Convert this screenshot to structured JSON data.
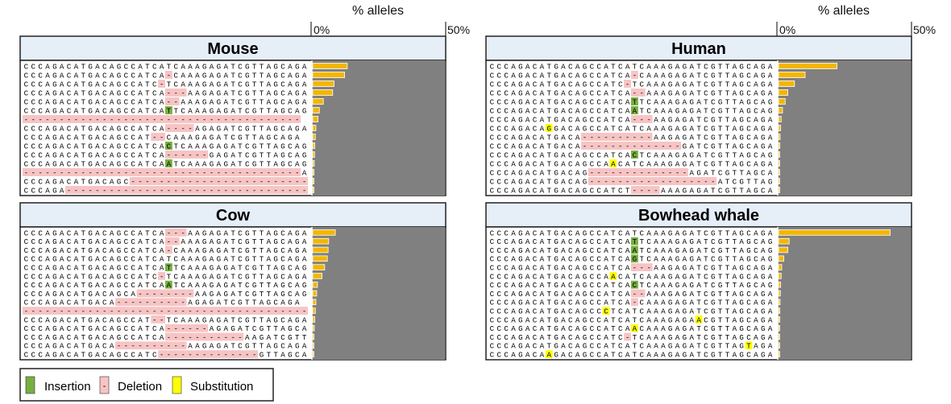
{
  "figure": {
    "axis_title": "% alleles",
    "tick_min": "0%",
    "tick_max": "50%"
  },
  "legend": {
    "insertion": "Insertion",
    "deletion": "Deletion",
    "substitution": "Substitution",
    "colors": {
      "insertion": "#77b041",
      "deletion": "#f7c4c4",
      "substitution": "#ffff00",
      "bar": "#f3b700",
      "plot_bg": "#808080",
      "header_bg": "#e6eef8"
    }
  },
  "chart_data": [
    {
      "type": "bar",
      "title": "Mouse",
      "x_range": [
        0,
        50
      ],
      "alleles": [
        {
          "seq": "CCCAGACATGACAGCCATCATCAAAGAGATCGTTAGCAGA",
          "value": 13
        },
        {
          "seq": "CCCAGACATGACAGCCATCA-CAAAGAGATCGTTAGCAGA",
          "value": 12
        },
        {
          "seq": "CCCAGACATGACAGCCATC-TCAAAGAGATCGTTAGCAGA",
          "value": 8
        },
        {
          "seq": "CCCAGACATGACAGCCATCA---AAGAGATCGTTAGCAGA",
          "value": 7.5
        },
        {
          "seq": "CCCAGACATGACAGCCATCA--AAAGAGATCGTTAGCAGA",
          "value": 4
        },
        {
          "seq": "CCCAGACATGACAGCCATCATTCAAAGAGATCGTTAGCAG",
          "value": 2.5,
          "ins": [
            20
          ]
        },
        {
          "seq": "---------------------------------------",
          "value": 2
        },
        {
          "seq": "CCCAGACATGACAGCCATCA----AGAGATCGTTAGCAGA",
          "value": 1.2
        },
        {
          "seq": "CCCAGACATGACAGCCAT--CAAAGAGATCGTTAGCAGA",
          "value": 1
        },
        {
          "seq": "CCCAGACATGACAGCCATCACTCAAAGAGATCGTTAGCAG",
          "value": 0.8,
          "ins": [
            20
          ]
        },
        {
          "seq": "CCCAGACATGACAGCCATCA------GAGATCGTTAGCAGA",
          "value": 0.7
        },
        {
          "seq": "CCCAGACATGACAGCCATCAATCAAAGAGATCGTTAGCAG",
          "value": 0.6,
          "ins": [
            20
          ]
        },
        {
          "seq": "---------------------------------------A",
          "value": 0.5
        },
        {
          "seq": "CCCAGACATGACAGC--------------------------AGA",
          "value": 0.4
        },
        {
          "seq": "CCCAGA----------------------------------",
          "value": 0.3
        }
      ]
    },
    {
      "type": "bar",
      "title": "Human",
      "x_range": [
        0,
        50
      ],
      "alleles": [
        {
          "seq": "CCCAGACATGACAGCCATCATCAAAGAGATCGTTAGCAGA",
          "value": 22
        },
        {
          "seq": "CCCAGACATGACAGCCATCA-CAAAGAGATCGTTAGCAGA",
          "value": 10
        },
        {
          "seq": "CCCAGACATGACAGCCATC-TCAAAGAGATCGTTAGCAGA",
          "value": 6
        },
        {
          "seq": "CCCAGACATGACAGCCATCA--AAAGAGATCGTTAGCAGA",
          "value": 3.5
        },
        {
          "seq": "CCCAGACATGACAGCCATCATTCAAAGAGATCGTTAGCAG",
          "value": 2.5,
          "ins": [
            20
          ]
        },
        {
          "seq": "CCCAGACATGACAGCCATCAATCAAAGAGATCGTTAGCAG",
          "value": 1.5,
          "ins": [
            20
          ]
        },
        {
          "seq": "CCCAGACATGACAGCCATCA---AAGAGATCGTTAGCAGA",
          "value": 1
        },
        {
          "seq": "CCCAGACAGGACAGCCATCATCAAAGAGATCGTTAGCAGA",
          "value": 0.8,
          "sub": [
            8
          ]
        },
        {
          "seq": "CCCAGACATGACA----------AAGAGATCGTTAGCAGA",
          "value": 0.6
        },
        {
          "seq": "CCCAGACATGACA--------------GATCGTTAGCAGA",
          "value": 0.5
        },
        {
          "seq": "CCCAGACATGACAGCCATCACTCAAAGAGATCGTTAGCAG",
          "value": 0.4,
          "ins": [
            20
          ]
        },
        {
          "seq": "CCCAGACATGACAGCCAACATCAAAGAGATCGTTAGCAGA",
          "value": 0.3,
          "sub": [
            17
          ]
        },
        {
          "seq": "CCCAGACATGACAG--------------AGATCGTTAGCAGA",
          "value": 0.3
        },
        {
          "seq": "CCCAGACATGACAG------------------ATCGTTAGCAGA",
          "value": 0.2
        },
        {
          "seq": "CCCAGACATGACAGCCATCT----AAAGAGATCGTTAGCAGA",
          "value": 0.2
        }
      ]
    },
    {
      "type": "bar",
      "title": "Cow",
      "x_range": [
        0,
        50
      ],
      "alleles": [
        {
          "seq": "CCCAGACATGACAGCCATCA---AAGAGATCGTTAGCAGA",
          "value": 8.5
        },
        {
          "seq": "CCCAGACATGACAGCCATCA--AAAGAGATCGTTAGCAGA",
          "value": 6
        },
        {
          "seq": "CCCAGACATGACAGCCATCA-CAAAGAGATCGTTAGCAGA",
          "value": 5.8
        },
        {
          "seq": "CCCAGACATGACAGCCATCATCAAAGAGATCGTTAGCAGA",
          "value": 5.5
        },
        {
          "seq": "CCCAGACATGACAGCCATCATTCAAAGAGATCGTTAGCAG",
          "value": 4.5,
          "ins": [
            20
          ]
        },
        {
          "seq": "CCCAGACATGACAGCCATC-TCAAAGAGATCGTTAGCAGA",
          "value": 3.5
        },
        {
          "seq": "CCCAGACATGACAGCCATCAATCAAAGAGATCGTTAGCAG",
          "value": 1.8,
          "ins": [
            20
          ]
        },
        {
          "seq": "CCCAGACATGACAGCA--------AAGAGATCGTTAGCAGA",
          "value": 1.5
        },
        {
          "seq": "CCCAGACATGACA----------AGAGATCGTTAGCAGA",
          "value": 1.2
        },
        {
          "seq": "----------------------------------------",
          "value": 1
        },
        {
          "seq": "CCCAGACATGACAGCCAT--TCAAAGAGATCGTTAGCAGA",
          "value": 0.8
        },
        {
          "seq": "CCCAGACATGACAGCCATCA------AGAGATCGTTAGCAGA",
          "value": 0.6
        },
        {
          "seq": "CCCAGACATGACAGCCATCA-----------AAGATCGTTAGCAGA",
          "value": 0.5
        },
        {
          "seq": "CCCAGACATGACA----------AAGAGATCGTTAGCAGA",
          "value": 0.4
        },
        {
          "seq": "CCCAGACATGACAGCCATC--------------GTTAGCAGA",
          "value": 0.3
        }
      ]
    },
    {
      "type": "bar",
      "title": "Bowhead whale",
      "x_range": [
        0,
        50
      ],
      "alleles": [
        {
          "seq": "CCCAGACATGACAGCCATCATCAAAGAGATCGTTAGCAGA",
          "value": 42
        },
        {
          "seq": "CCCAGACATGACAGCCATCATTCAAAGAGATCGTTAGCAG",
          "value": 4,
          "ins": [
            20
          ]
        },
        {
          "seq": "CCCAGACATGACAGCCATCAATCAAAGAGATCGTTAGCAG",
          "value": 3.5,
          "ins": [
            20
          ]
        },
        {
          "seq": "CCCAGACATGACAGCCATCAGTCAAAGAGATCGTTAGCAG",
          "value": 2,
          "ins": [
            20
          ]
        },
        {
          "seq": "CCCAGACATGACAGCCATCA---AAGAGATCGTTAGCAGA",
          "value": 1.2
        },
        {
          "seq": "CCCAGACATGACAGCCAACATCAAAGAGATCGTTAGCAGA",
          "value": 1,
          "sub": [
            17
          ]
        },
        {
          "seq": "CCCAGACATGACAGCCATCACTCAAAGAGATCGTTAGCAG",
          "value": 0.8,
          "ins": [
            20
          ]
        },
        {
          "seq": "CCCAGACATGACAGCCATCA--AAAGAGATCGTTAGCAGA",
          "value": 0.7
        },
        {
          "seq": "CCCAGACATGACAGCCATCA-CAAAGAGATCGTTAGCAGA",
          "value": 0.6
        },
        {
          "seq": "CCCAGACATGACAGCCCTCATCAAAGAGATCGTTAGCAGA",
          "value": 0.5,
          "sub": [
            16
          ]
        },
        {
          "seq": "CCCAGACATGACAGCCATCATCAAAGAGAACGTTAGCAGA",
          "value": 0.5,
          "sub": [
            29
          ]
        },
        {
          "seq": "CCCAGACATGACAGCCATCAACAAAGAGATCGTTAGCAGA",
          "value": 0.4,
          "sub": [
            20
          ]
        },
        {
          "seq": "CCCAGACATGACAGCCATC-TCAAAGAGATCGTTAGCAGA",
          "value": 0.4
        },
        {
          "seq": "CCCAGACATGACAGCCATCATCAAAGAGATCGTTAGTAGA",
          "value": 0.3,
          "sub": [
            36
          ]
        },
        {
          "seq": "CCCAGACAAGACAGCCATCATCAAAGAGATCGTTAGCAGA",
          "value": 0.3,
          "sub": [
            8
          ]
        }
      ]
    }
  ]
}
